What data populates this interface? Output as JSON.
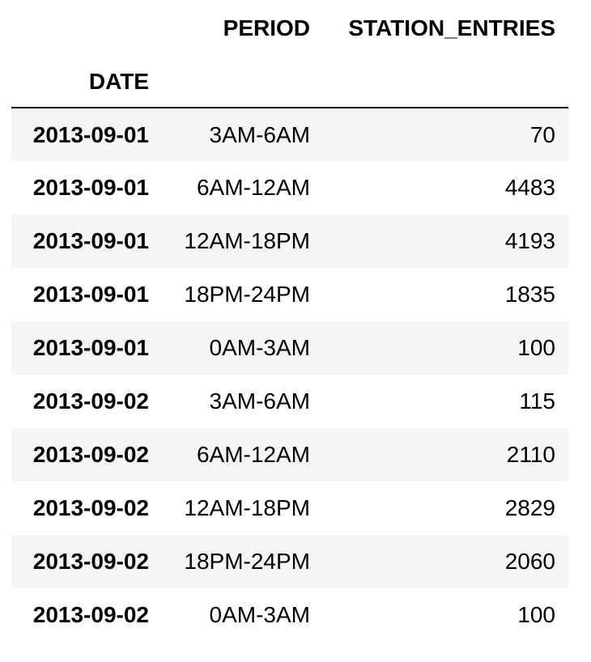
{
  "table": {
    "columns": [
      "PERIOD",
      "STATION_ENTRIES"
    ],
    "index_name": "DATE",
    "rows": [
      {
        "date": "2013-09-01",
        "period": "3AM-6AM",
        "entries": "70"
      },
      {
        "date": "2013-09-01",
        "period": "6AM-12AM",
        "entries": "4483"
      },
      {
        "date": "2013-09-01",
        "period": "12AM-18PM",
        "entries": "4193"
      },
      {
        "date": "2013-09-01",
        "period": "18PM-24PM",
        "entries": "1835"
      },
      {
        "date": "2013-09-01",
        "period": "0AM-3AM",
        "entries": "100"
      },
      {
        "date": "2013-09-02",
        "period": "3AM-6AM",
        "entries": "115"
      },
      {
        "date": "2013-09-02",
        "period": "6AM-12AM",
        "entries": "2110"
      },
      {
        "date": "2013-09-02",
        "period": "12AM-18PM",
        "entries": "2829"
      },
      {
        "date": "2013-09-02",
        "period": "18PM-24PM",
        "entries": "2060"
      },
      {
        "date": "2013-09-02",
        "period": "0AM-3AM",
        "entries": "100"
      }
    ]
  }
}
